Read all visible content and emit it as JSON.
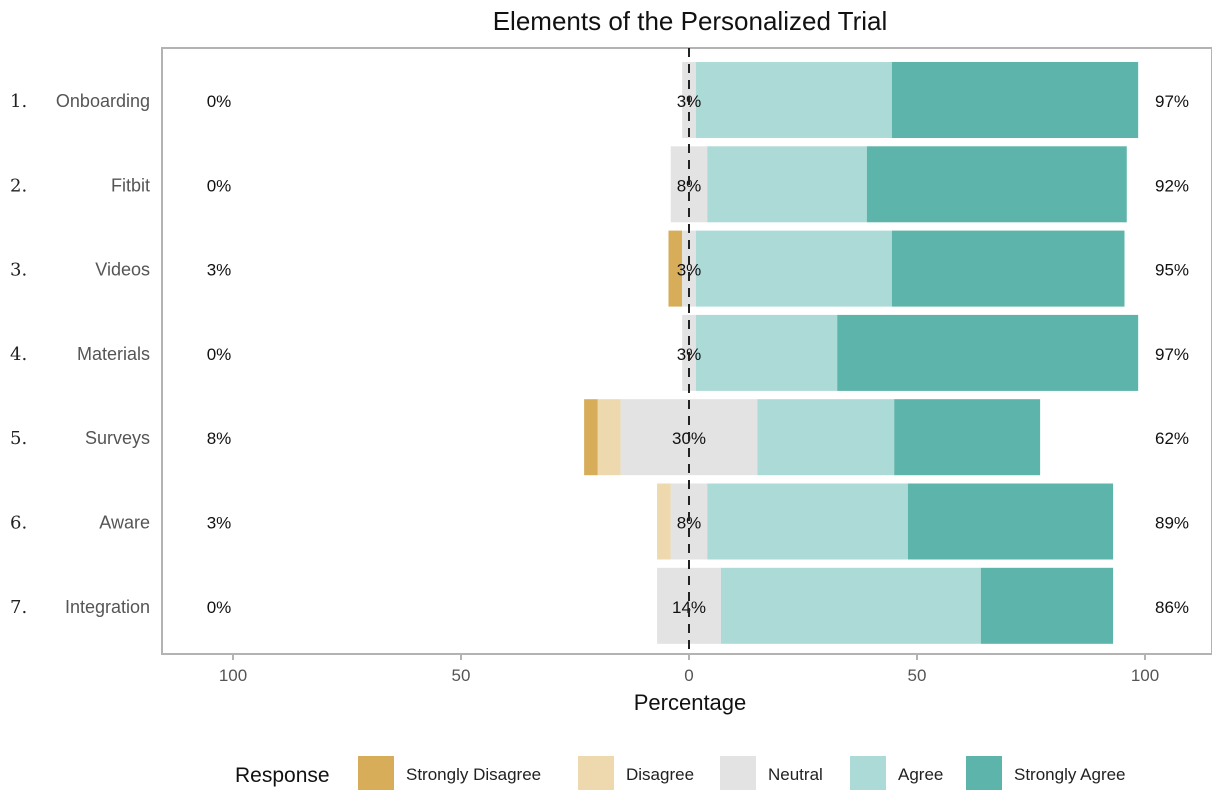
{
  "colors": {
    "strongly_disagree": "#d8ad5a",
    "disagree": "#edd9ad",
    "neutral": "#e3e3e3",
    "agree": "#acdad7",
    "strongly_agree": "#5cb4ab"
  },
  "chart_data": {
    "type": "bar",
    "orientation": "horizontal",
    "stacked": "diverging",
    "title": "Elements of the Personalized Trial",
    "xlabel": "Percentage",
    "xlim": [
      -100,
      100
    ],
    "xticks": [
      -100,
      -50,
      0,
      50,
      100
    ],
    "xtick_labels": [
      "100",
      "50",
      "0",
      "50",
      "100"
    ],
    "grid": false,
    "legend_position": "bottom",
    "legend_title": "Response",
    "categories": [
      "Onboarding",
      "Fitbit",
      "Videos",
      "Materials",
      "Surveys",
      "Aware",
      "Integration"
    ],
    "row_numbers": [
      "1.",
      "2.",
      "3.",
      "4.",
      "5.",
      "6.",
      "7."
    ],
    "series": [
      {
        "name": "Strongly Disagree",
        "key": "strongly_disagree",
        "values": [
          0,
          0,
          3,
          0,
          3,
          0,
          0
        ]
      },
      {
        "name": "Disagree",
        "key": "disagree",
        "values": [
          0,
          0,
          0,
          0,
          5,
          3,
          0
        ]
      },
      {
        "name": "Neutral",
        "key": "neutral",
        "values": [
          3,
          8,
          3,
          3,
          30,
          8,
          14
        ]
      },
      {
        "name": "Agree",
        "key": "agree",
        "values": [
          43,
          35,
          43,
          31,
          30,
          44,
          57
        ]
      },
      {
        "name": "Strongly Agree",
        "key": "strongly_agree",
        "values": [
          54,
          57,
          51,
          66,
          32,
          45,
          29
        ]
      }
    ],
    "left_labels": [
      "0%",
      "0%",
      "3%",
      "0%",
      "8%",
      "3%",
      "0%"
    ],
    "center_labels": [
      "3%",
      "8%",
      "3%",
      "3%",
      "30%",
      "8%",
      "14%"
    ],
    "right_labels": [
      "97%",
      "92%",
      "95%",
      "97%",
      "62%",
      "89%",
      "86%"
    ]
  }
}
